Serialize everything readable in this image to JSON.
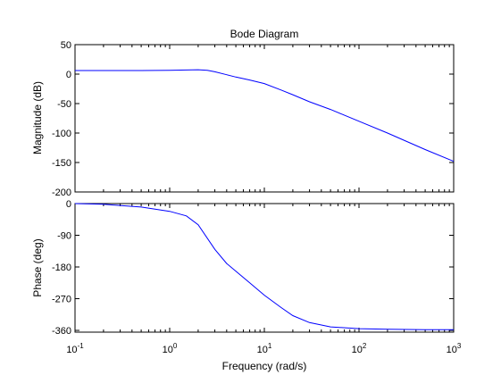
{
  "chart_data": {
    "type": "line",
    "title": "Bode Diagram",
    "xlabel": "Frequency  (rad/s)",
    "xscale": "log",
    "xlim": [
      0.1,
      1000
    ],
    "x_tick_labels": [
      {
        "base": "10",
        "exp": "-1"
      },
      {
        "base": "10",
        "exp": "0"
      },
      {
        "base": "10",
        "exp": "1"
      },
      {
        "base": "10",
        "exp": "2"
      },
      {
        "base": "10",
        "exp": "3"
      }
    ],
    "grid": false,
    "line_color": "#0000ff",
    "subplots": [
      {
        "name": "magnitude",
        "ylabel": "Magnitude (dB)",
        "ylim": [
          -200,
          50
        ],
        "yticks": [
          "50",
          "0",
          "-50",
          "-100",
          "-150",
          "-200"
        ],
        "x": [
          0.1,
          0.2,
          0.5,
          1,
          1.5,
          2,
          2.5,
          3,
          4,
          5,
          7,
          10,
          15,
          20,
          30,
          50,
          100,
          200,
          500,
          1000
        ],
        "y": [
          6,
          6,
          6,
          6.5,
          7,
          7.5,
          6.5,
          4,
          -1,
          -5,
          -10,
          -16,
          -27,
          -35,
          -47,
          -60,
          -80,
          -100,
          -128,
          -148
        ]
      },
      {
        "name": "phase",
        "ylabel": "Phase (deg)",
        "ylim": [
          -365,
          0
        ],
        "yticks": [
          "0",
          "-90",
          "-180",
          "-270",
          "-360"
        ],
        "x": [
          0.1,
          0.2,
          0.5,
          1,
          1.5,
          2,
          3,
          4,
          5,
          7,
          10,
          15,
          20,
          30,
          50,
          100,
          200,
          500,
          1000
        ],
        "y": [
          0,
          -2,
          -10,
          -22,
          -35,
          -60,
          -130,
          -170,
          -192,
          -225,
          -260,
          -295,
          -318,
          -338,
          -350,
          -355,
          -357,
          -358,
          -358
        ]
      }
    ]
  }
}
